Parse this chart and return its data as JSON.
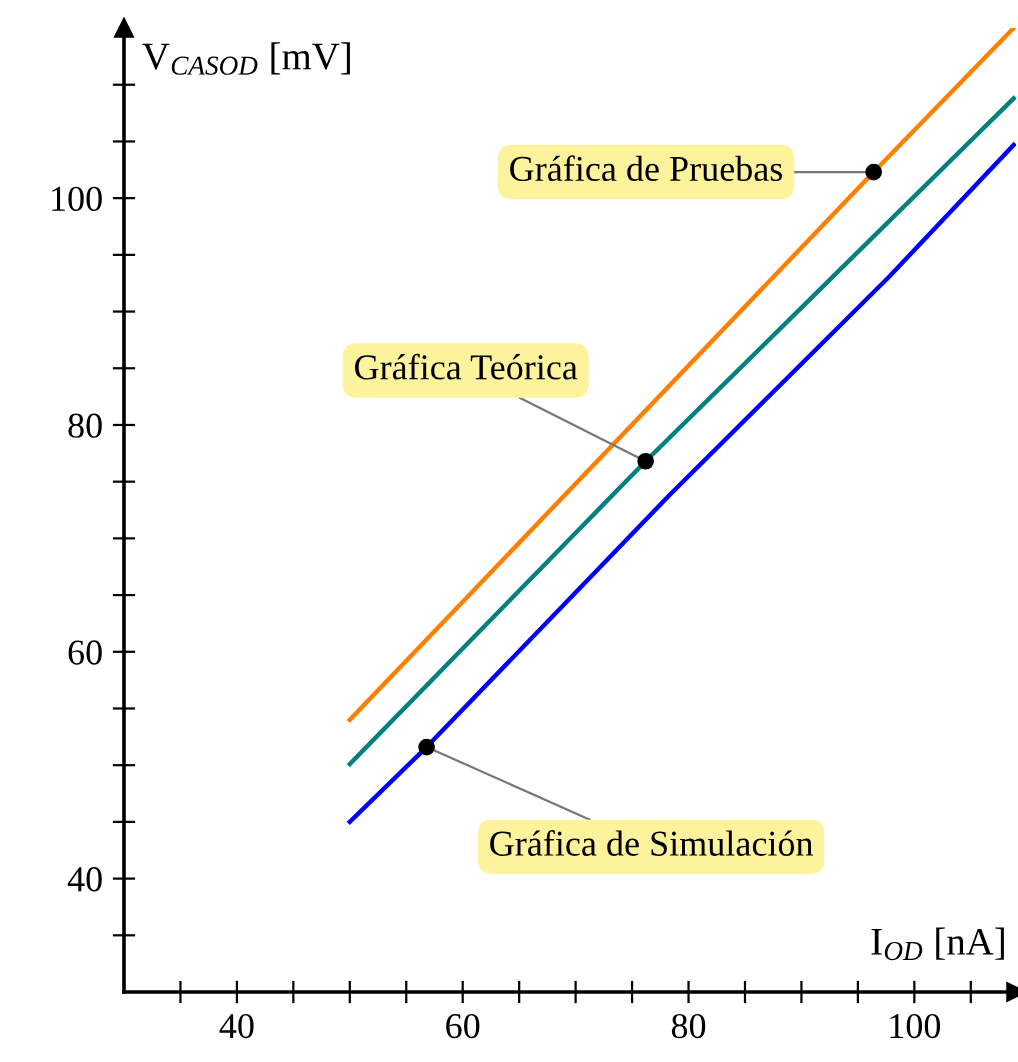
{
  "chart_data": {
    "type": "line",
    "xlabel": "I$_{OD}$ [nA]",
    "ylabel": "V$_{CASOD}$ [mV]",
    "xlim": [
      30,
      109
    ],
    "ylim": [
      30,
      115
    ],
    "xticks": [
      {
        "value": 35,
        "label": null
      },
      40,
      {
        "value": 45,
        "label": null
      },
      {
        "value": 50,
        "label": null
      },
      {
        "value": 55,
        "label": null
      },
      60,
      {
        "value": 65,
        "label": null
      },
      {
        "value": 70,
        "label": null
      },
      {
        "value": 75,
        "label": null
      },
      80,
      {
        "value": 85,
        "label": null
      },
      {
        "value": 90,
        "label": null
      },
      {
        "value": 95,
        "label": null
      },
      100,
      {
        "value": 105,
        "label": null
      }
    ],
    "yticks": [
      {
        "value": 35,
        "label": null
      },
      40,
      {
        "value": 45,
        "label": null
      },
      {
        "value": 50,
        "label": null
      },
      {
        "value": 55,
        "label": null
      },
      60,
      {
        "value": 65,
        "label": null
      },
      {
        "value": 70,
        "label": null
      },
      {
        "value": 75,
        "label": null
      },
      80,
      {
        "value": 85,
        "label": null
      },
      {
        "value": 90,
        "label": null
      },
      {
        "value": 95,
        "label": null
      },
      100,
      {
        "value": 105,
        "label": null
      },
      {
        "value": 110,
        "label": null
      }
    ],
    "grid": false,
    "legend": false,
    "marker": "none",
    "line_style": "solid",
    "series": [
      {
        "color": "#ff7f00",
        "x": [
          50,
          96.4,
          108.8
        ],
        "values": [
          54,
          102.3,
          115
        ]
      },
      {
        "color": "#008080",
        "x": [
          50,
          76.2,
          108.8
        ],
        "values": [
          50.1,
          76.8,
          108.8
        ]
      },
      {
        "color": "#0000ff",
        "x": [
          50,
          56.8,
          78.3,
          97.7,
          108.8
        ],
        "values": [
          45,
          51.6,
          73.8,
          93,
          104.7
        ]
      }
    ],
    "annotations": [
      {
        "text": "Gráfica de Pruebas",
        "x": 96.4,
        "y": 102.3
      },
      {
        "text": "Gráfica Teórica",
        "x": 76.2,
        "y": 76.8
      },
      {
        "text": "Gráfica de Simulación",
        "x": 56.8,
        "y": 51.6
      }
    ]
  }
}
